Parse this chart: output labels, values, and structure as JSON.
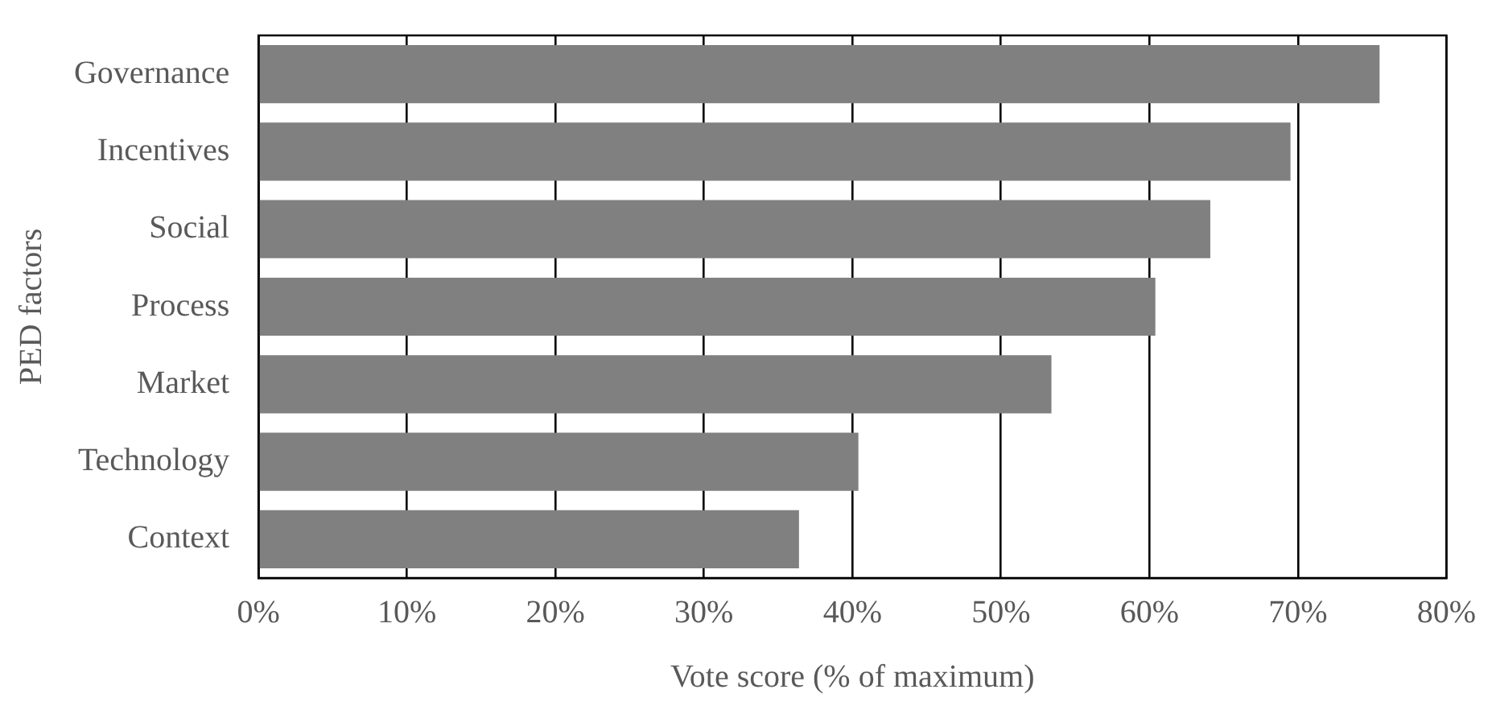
{
  "chart_data": {
    "type": "bar",
    "orientation": "horizontal",
    "xlabel": "Vote score (% of maximum)",
    "ylabel": "PED factors",
    "categories": [
      "Governance",
      "Incentives",
      "Social",
      "Process",
      "Market",
      "Technology",
      "Context"
    ],
    "values": [
      75.5,
      69.5,
      64.1,
      60.4,
      53.4,
      40.4,
      36.4
    ],
    "color": "#808080",
    "xlim": [
      0,
      80
    ],
    "xticks": [
      {
        "value": 0,
        "label": "0%"
      },
      {
        "value": 10,
        "label": "10%"
      },
      {
        "value": 20,
        "label": "20%"
      },
      {
        "value": 30,
        "label": "30%"
      },
      {
        "value": 40,
        "label": "40%"
      },
      {
        "value": 50,
        "label": "50%"
      },
      {
        "value": 60,
        "label": "60%"
      },
      {
        "value": 70,
        "label": "70%"
      },
      {
        "value": 80,
        "label": "80%"
      }
    ],
    "grid": "x",
    "legend": false
  }
}
